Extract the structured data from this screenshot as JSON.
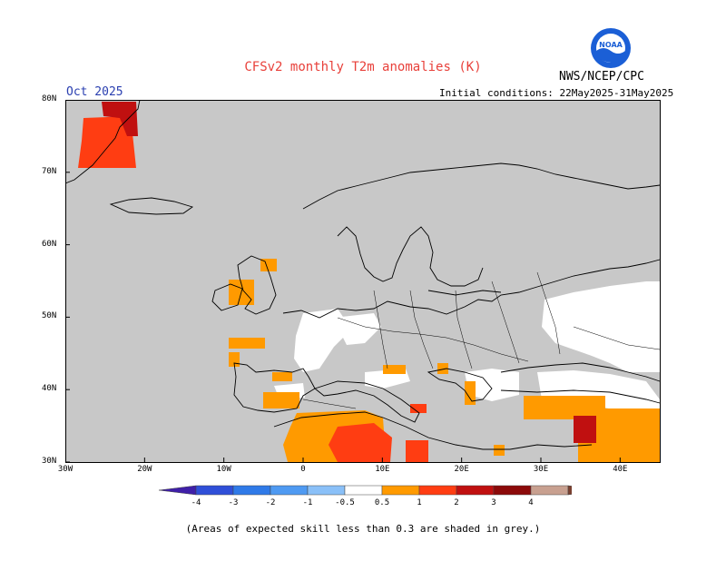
{
  "title": "CFSv2 monthly T2m anomalies (K)",
  "month": "Oct 2025",
  "initial_conditions": "Initial conditions: 22May2025-31May2025",
  "org": "NWS/NCEP/CPC",
  "logo_text": "NOAA",
  "footnote": "(Areas of expected skill less than 0.3 are shaded in grey.)",
  "map": {
    "lon_range": [
      -30,
      45
    ],
    "lat_range": [
      30,
      80
    ],
    "lon_ticks": [
      {
        "value": -30,
        "label": "30W"
      },
      {
        "value": -20,
        "label": "20W"
      },
      {
        "value": -10,
        "label": "10W"
      },
      {
        "value": 0,
        "label": "0"
      },
      {
        "value": 10,
        "label": "10E"
      },
      {
        "value": 20,
        "label": "20E"
      },
      {
        "value": 30,
        "label": "30E"
      },
      {
        "value": 40,
        "label": "40E"
      }
    ],
    "lat_ticks": [
      {
        "value": 30,
        "label": "30N"
      },
      {
        "value": 40,
        "label": "40N"
      },
      {
        "value": 50,
        "label": "50N"
      },
      {
        "value": 60,
        "label": "60N"
      },
      {
        "value": 70,
        "label": "70N"
      },
      {
        "value": 80,
        "label": "80N"
      }
    ],
    "low_skill_color": "#c8c8c8",
    "coast_color": "#000000"
  },
  "colorbar": {
    "labels": [
      "-4",
      "-3",
      "-2",
      "-1",
      "-0.5",
      "0.5",
      "1",
      "2",
      "3",
      "4"
    ],
    "colors": [
      "#3f1fa8",
      "#2f4fd8",
      "#2f7ae8",
      "#4f9af2",
      "#8ac0f8",
      "#ffffff",
      "#ff9a00",
      "#ff3d12",
      "#c01010",
      "#8c0a0a",
      "#c8a090",
      "#7a4030"
    ]
  },
  "anomaly_regions": [
    {
      "class": "0.5-1",
      "color": "#ff9a00",
      "area": "Morocco / Algeria / western Sahara"
    },
    {
      "class": "1-2",
      "color": "#ff3d12",
      "area": "southern Algeria / Tunisia / Libya"
    },
    {
      "class": "1-2",
      "color": "#ff3d12",
      "area": "Greenland coast"
    },
    {
      "class": "2-3",
      "color": "#c01010",
      "area": "Greenland north-east / Sicily"
    },
    {
      "class": "0.5-1",
      "color": "#ff9a00",
      "area": "Iberian coasts / Ireland / Scotland / Bay of Biscay"
    },
    {
      "class": "0.5-1",
      "color": "#ff9a00",
      "area": "Turkey / Syria / Iraq"
    },
    {
      "class": "0.5-1",
      "color": "#ff9a00",
      "area": "Balkans / Adriatic / Aegean"
    }
  ]
}
